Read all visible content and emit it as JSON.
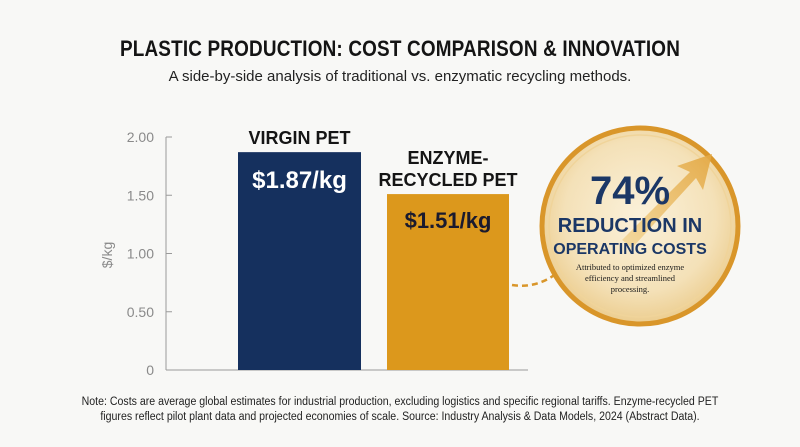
{
  "title": "PLASTIC PRODUCTION: COST COMPARISON & INNOVATION",
  "subtitle": "A side-by-side analysis of traditional vs. enzymatic recycling methods.",
  "callout": {
    "percent": "74%",
    "headline_line1": "REDUCTION IN",
    "headline_line2": "OPERATING COSTS",
    "detail_line1": "Attributed to optimized enzyme",
    "detail_line2": "efficiency and streamlined",
    "detail_line3": "processing."
  },
  "note_line1": "Note: Costs are average global estimates for industrial production, excluding logistics and specific regional tariffs. Enzyme-recycled PET",
  "note_line2": "figures reflect pilot plant data and projected economies of scale. Source: Industry Analysis & Data Models, 2024 (Abstract Data).",
  "colors": {
    "virgin": "#15305e",
    "enzyme": "#dc981c",
    "callout_ring": "#d9962a",
    "callout_text": "#1b3766",
    "callout_fill": "#f6e7c8"
  },
  "chart_data": {
    "type": "bar",
    "categories": [
      "VIRGIN PET",
      "ENZYME-RECYCLED PET"
    ],
    "category_label_lines": [
      [
        "VIRGIN PET"
      ],
      [
        "ENZYME-",
        "RECYCLED PET"
      ]
    ],
    "values": [
      1.87,
      1.51
    ],
    "value_labels": [
      "$1.87/kg",
      "$1.51/kg"
    ],
    "ylabel": "$/kg",
    "ylim": [
      0,
      2.0
    ],
    "yticks": [
      0,
      0.5,
      1.0,
      1.5,
      2.0
    ],
    "ytick_labels": [
      "0",
      "0.50",
      "1.00",
      "1.50",
      "2.00"
    ],
    "grid": false
  }
}
